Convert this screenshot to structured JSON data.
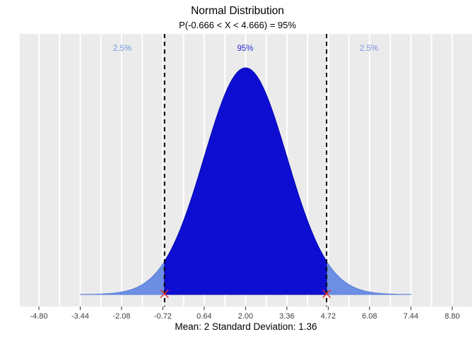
{
  "chart_data": {
    "type": "area",
    "title": "Normal Distribution",
    "subtitle": "P(-0.666 < X < 4.666) = 95%",
    "xlabel": "Mean: 2  Standard Deviation: 1.36",
    "distribution": {
      "name": "normal",
      "mean": 2,
      "sd": 1.36
    },
    "shaded_region": {
      "lower": -0.666,
      "upper": 4.666,
      "probability_label": "95%"
    },
    "annotations": {
      "left_tail": "2.5%",
      "center": "95%",
      "right_tail": "2.5%"
    },
    "x_tick_values": [
      -4.8,
      -3.44,
      -2.08,
      -0.72,
      0.64,
      2.0,
      3.36,
      4.72,
      6.08,
      7.44,
      8.8
    ],
    "x_tick_labels": [
      "-4.80",
      "-3.44",
      "-2.08",
      "-0.72",
      "0.64",
      "2.00",
      "3.36",
      "4.72",
      "6.08",
      "7.44",
      "8.80"
    ],
    "xlim": [
      -5.43,
      9.46
    ],
    "ylim": [
      0,
      0.3
    ],
    "curve_extent_sd": 4,
    "grid": {
      "show": true,
      "step": 0.68,
      "orientation": "vertical"
    },
    "legend": "none"
  },
  "colors": {
    "panel_background": "#EBEBEB",
    "gridline": "#FFFFFF",
    "center_fill": "#0E0ED2",
    "center_stroke": "#0909B0",
    "tail_fill": "#6C8EE3",
    "tail_stroke": "#5C7FD8",
    "center_label": "#2B2BD5",
    "tail_label": "#7795E2",
    "boundary_line": "#000000",
    "boundary_marker": "#E03030",
    "tick_mark": "#303030",
    "tick_label": "#404040",
    "text": "#000000"
  }
}
